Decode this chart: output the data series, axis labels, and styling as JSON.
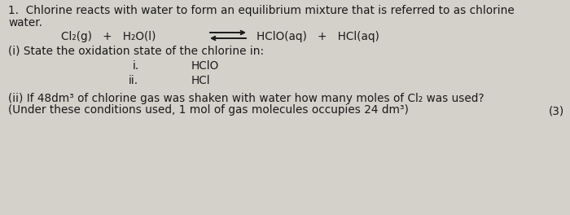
{
  "background_color": "#d4d1cb",
  "text_color": "#1a1a1a",
  "title_line1": "1.  Chlorine reacts with water to form an equilibrium mixture that is referred to as chlorine",
  "title_line2": "water.",
  "equation_left": "Cl₂(g)   +   H₂O(l)",
  "equation_right": "HClO(aq)   +   HCl(aq)",
  "part_i_label": "(i) State the oxidation state of the chlorine in:",
  "roman_i": "i.",
  "roman_i_text": "HClO",
  "roman_ii": "ii.",
  "roman_ii_text": "HCl",
  "part_ii_line1": "(ii) If 48dm³ of chlorine gas was shaken with water how many moles of Cl₂ was used?",
  "part_ii_line2": "(Under these conditions used, 1 mol of gas molecules occupies 24 dm³)",
  "marks": "(3)",
  "font_size_main": 9.8,
  "font_family": "DejaVu Sans"
}
